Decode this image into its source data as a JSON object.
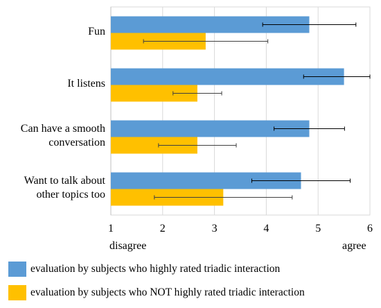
{
  "chart_data": {
    "type": "bar",
    "orientation": "horizontal",
    "categories": [
      "Fun",
      "It listens",
      "Can have a smooth\nconversation",
      "Want to talk about\nother topics too"
    ],
    "series": [
      {
        "name": "evaluation by subjects who highly rated triadic interaction",
        "color": "#5b9bd5",
        "values": [
          4.83,
          5.5,
          4.83,
          4.67
        ],
        "error": [
          0.9,
          0.78,
          0.68,
          0.95
        ]
      },
      {
        "name": "evaluation by subjects who NOT highly rated triadic interaction",
        "color": "#ffc000",
        "values": [
          2.83,
          2.67,
          2.67,
          3.17
        ],
        "error": [
          1.2,
          0.47,
          0.75,
          1.33
        ]
      }
    ],
    "xlim": [
      1,
      6
    ],
    "xticks": [
      1,
      2,
      3,
      4,
      5,
      6
    ],
    "grid": "vertical",
    "scale_labels": {
      "low": "disagree",
      "high": "agree"
    },
    "legend_position": "bottom"
  }
}
